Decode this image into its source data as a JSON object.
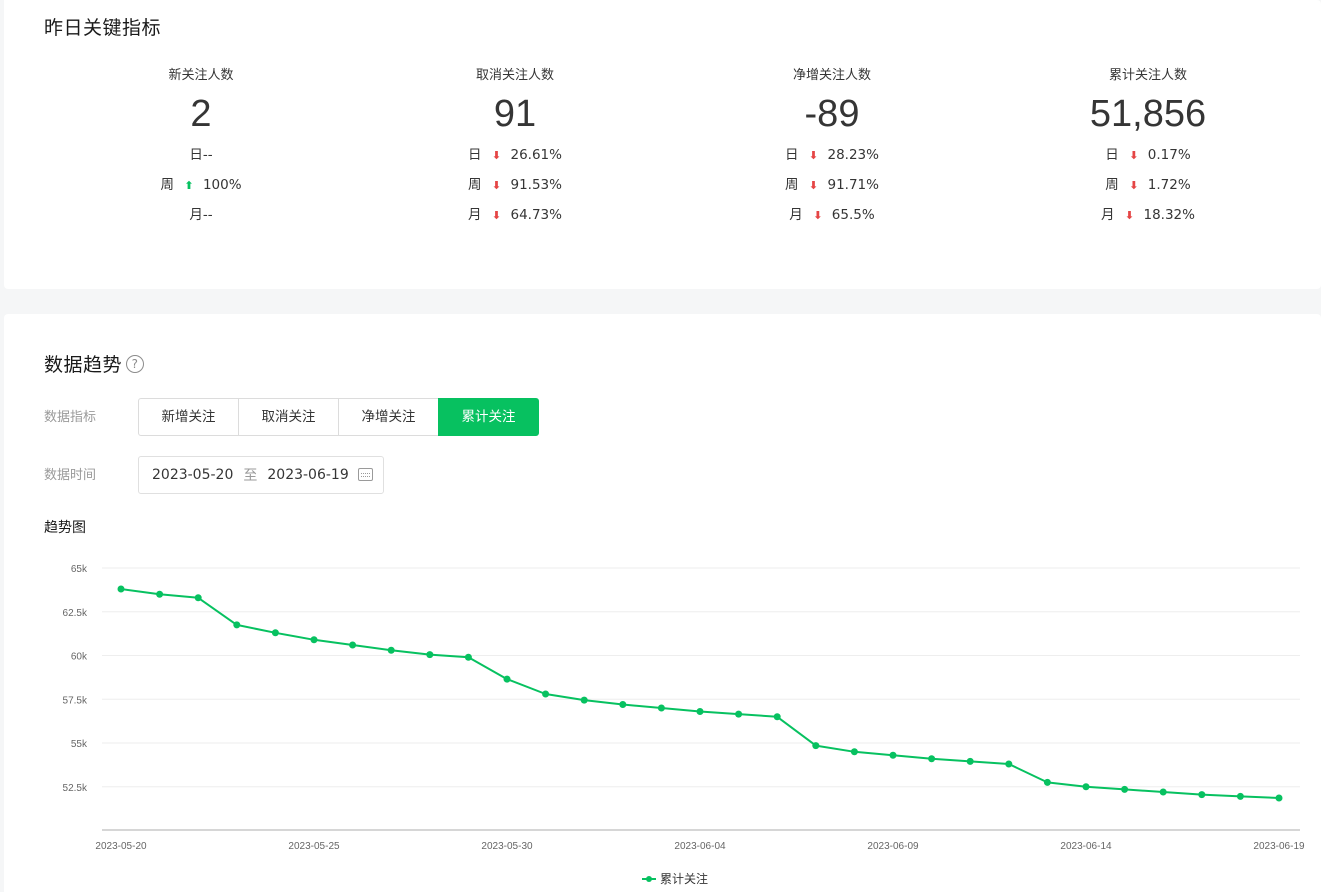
{
  "summary": {
    "title": "昨日关键指标",
    "metrics": [
      {
        "label": "新关注人数",
        "value": "2",
        "rows": [
          {
            "period": "日",
            "trend": "none",
            "change": "--"
          },
          {
            "period": "周",
            "trend": "up",
            "change": "100%"
          },
          {
            "period": "月",
            "trend": "none",
            "change": "--"
          }
        ]
      },
      {
        "label": "取消关注人数",
        "value": "91",
        "rows": [
          {
            "period": "日",
            "trend": "down",
            "change": "26.61%"
          },
          {
            "period": "周",
            "trend": "down",
            "change": "91.53%"
          },
          {
            "period": "月",
            "trend": "down",
            "change": "64.73%"
          }
        ]
      },
      {
        "label": "净增关注人数",
        "value": "-89",
        "rows": [
          {
            "period": "日",
            "trend": "down",
            "change": "28.23%"
          },
          {
            "period": "周",
            "trend": "down",
            "change": "91.71%"
          },
          {
            "period": "月",
            "trend": "down",
            "change": "65.5%"
          }
        ]
      },
      {
        "label": "累计关注人数",
        "value": "51,856",
        "rows": [
          {
            "period": "日",
            "trend": "down",
            "change": "0.17%"
          },
          {
            "period": "周",
            "trend": "down",
            "change": "1.72%"
          },
          {
            "period": "月",
            "trend": "down",
            "change": "18.32%"
          }
        ]
      }
    ]
  },
  "trend": {
    "title": "数据趋势",
    "help_icon": "?",
    "metric_label": "数据指标",
    "metric_tabs": [
      "新增关注",
      "取消关注",
      "净增关注",
      "累计关注"
    ],
    "active_tab": "累计关注",
    "time_label": "数据时间",
    "date_start": "2023-05-20",
    "date_separator": "至",
    "date_end": "2023-06-19",
    "chart_title": "趋势图"
  },
  "colors": {
    "accent": "#07c160",
    "down": "#e54545",
    "up": "#07c160"
  },
  "chart_data": {
    "type": "line",
    "title": "趋势图",
    "xlabel": "",
    "ylabel": "",
    "ylim": [
      50000,
      65000
    ],
    "yticks": [
      "65k",
      "62.5k",
      "60k",
      "57.5k",
      "55k",
      "52.5k"
    ],
    "xticks": [
      "2023-05-20",
      "2023-05-25",
      "2023-05-30",
      "2023-06-04",
      "2023-06-09",
      "2023-06-14",
      "2023-06-19"
    ],
    "legend_position": "bottom-center",
    "grid": true,
    "x": [
      "2023-05-20",
      "2023-05-21",
      "2023-05-22",
      "2023-05-23",
      "2023-05-24",
      "2023-05-25",
      "2023-05-26",
      "2023-05-27",
      "2023-05-28",
      "2023-05-29",
      "2023-05-30",
      "2023-05-31",
      "2023-06-01",
      "2023-06-02",
      "2023-06-03",
      "2023-06-04",
      "2023-06-05",
      "2023-06-06",
      "2023-06-07",
      "2023-06-08",
      "2023-06-09",
      "2023-06-10",
      "2023-06-11",
      "2023-06-12",
      "2023-06-13",
      "2023-06-14",
      "2023-06-15",
      "2023-06-16",
      "2023-06-17",
      "2023-06-18",
      "2023-06-19"
    ],
    "series": [
      {
        "name": "累计关注",
        "values": [
          63800,
          63500,
          63300,
          61750,
          61300,
          60900,
          60600,
          60300,
          60050,
          59900,
          58650,
          57800,
          57450,
          57200,
          57000,
          56800,
          56650,
          56500,
          54850,
          54500,
          54300,
          54100,
          53950,
          53800,
          52750,
          52500,
          52350,
          52200,
          52050,
          51950,
          51856
        ]
      }
    ]
  }
}
